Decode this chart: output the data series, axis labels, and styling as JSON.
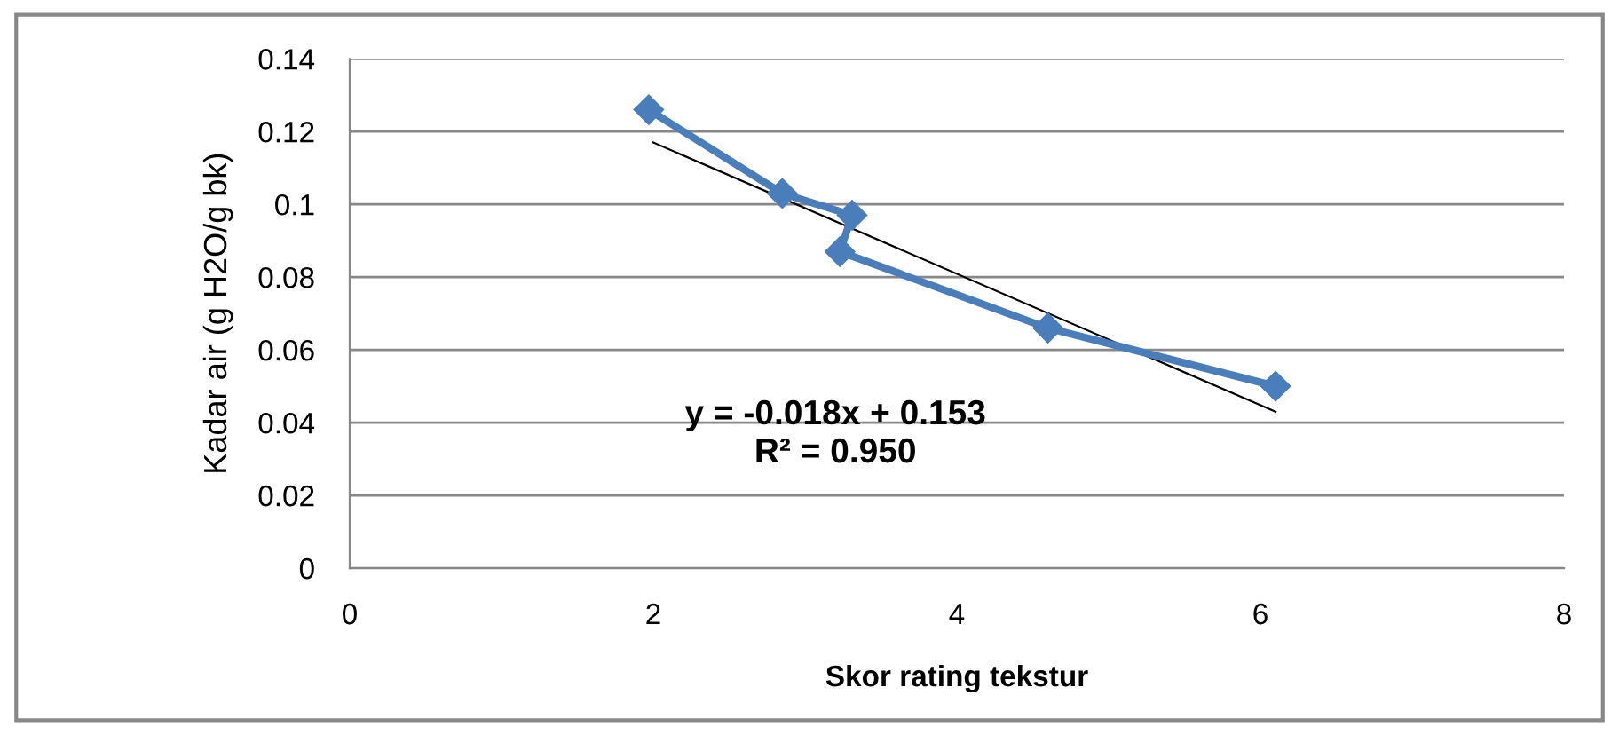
{
  "chart_data": {
    "type": "line",
    "xlabel": "Skor rating tekstur",
    "ylabel": "Kadar air (g H2O/g bk)",
    "xlim": [
      0,
      8
    ],
    "xticks": [
      0,
      2,
      4,
      6,
      8
    ],
    "ylim": [
      0,
      0.14
    ],
    "yticks": [
      0,
      0.02,
      0.04,
      0.06,
      0.08,
      0.1,
      0.12,
      0.14
    ],
    "grid": "y",
    "series": [
      {
        "color": "#4a7ebb",
        "marker": "diamond",
        "x": [
          1.97,
          2.85,
          3.31,
          3.23,
          4.6,
          6.1
        ],
        "values": [
          0.126,
          0.103,
          0.097,
          0.087,
          0.066,
          0.05
        ]
      },
      {
        "color": "#000000",
        "marker": "none",
        "x": [
          2.0,
          6.1
        ],
        "values": [
          0.117,
          0.043
        ]
      }
    ],
    "annotations": [
      "y = -0.018x + 0.153",
      "R² = 0.950"
    ]
  }
}
